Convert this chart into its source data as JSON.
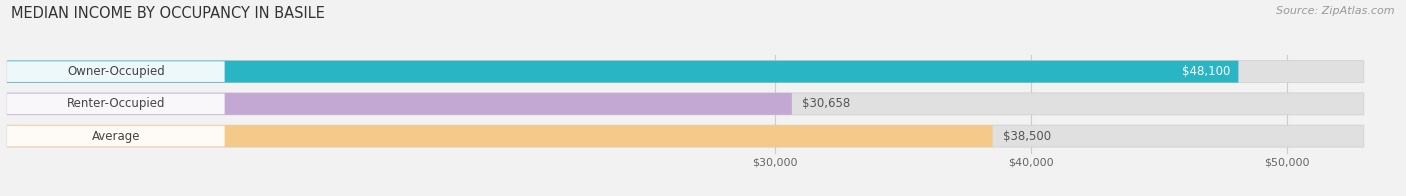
{
  "title": "MEDIAN INCOME BY OCCUPANCY IN BASILE",
  "source": "Source: ZipAtlas.com",
  "categories": [
    "Owner-Occupied",
    "Renter-Occupied",
    "Average"
  ],
  "values": [
    48100,
    30658,
    38500
  ],
  "labels": [
    "$48,100",
    "$30,658",
    "$38,500"
  ],
  "bar_colors": [
    "#2ab5c4",
    "#c4a8d4",
    "#f5c98a"
  ],
  "xlim_min": 0,
  "xlim_max": 53000,
  "display_min": 27000,
  "xticks": [
    30000,
    40000,
    50000
  ],
  "xtick_labels": [
    "$30,000",
    "$40,000",
    "$50,000"
  ],
  "background_color": "#f2f2f2",
  "bar_bg_color": "#e0e0e0",
  "title_fontsize": 10.5,
  "source_fontsize": 8,
  "cat_label_fontsize": 8.5,
  "val_label_fontsize": 8.5,
  "tick_fontsize": 8,
  "bar_height": 0.68,
  "label_value_inside": [
    true,
    false,
    false
  ],
  "label_text_color_inside": "#ffffff",
  "label_text_color_outside": "#555555"
}
